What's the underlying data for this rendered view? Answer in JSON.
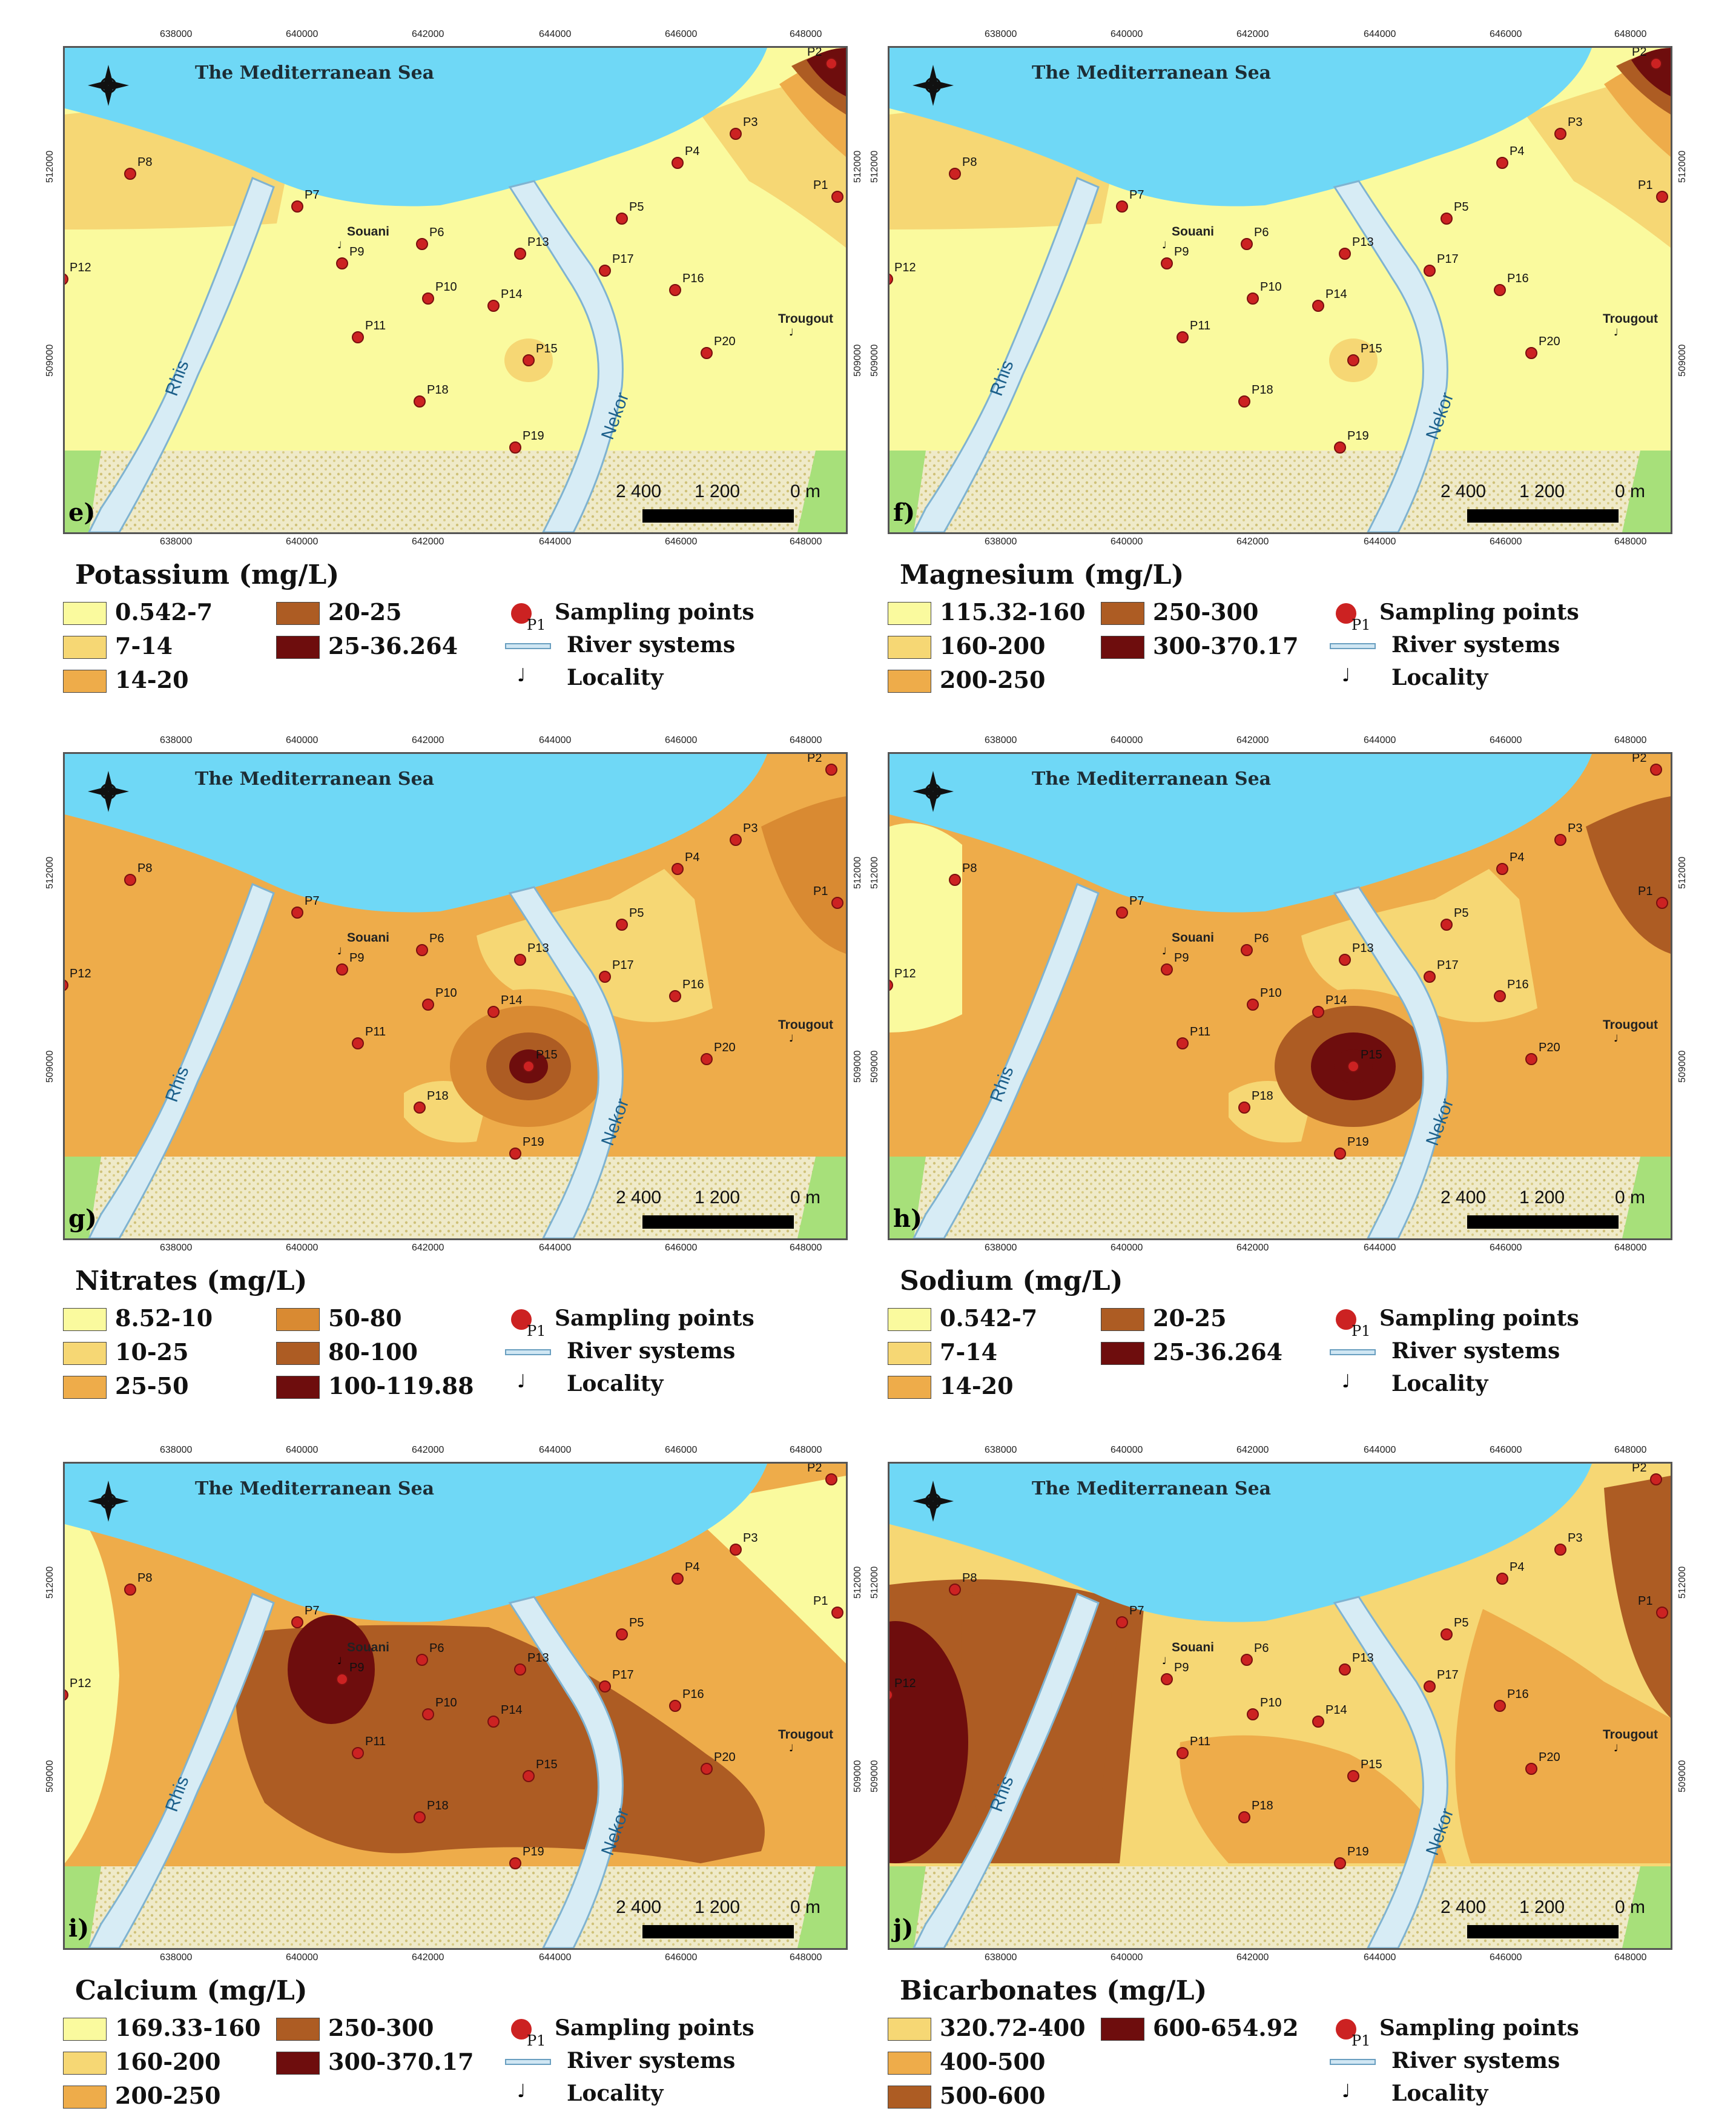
{
  "x_ticks": [
    "638000",
    "640000",
    "642000",
    "644000",
    "646000",
    "648000"
  ],
  "y_ticks": [
    "512000",
    "509000"
  ],
  "sea_label": "The Mediterranean Sea",
  "localities": {
    "souani": "Souani",
    "trougout": "Trougout"
  },
  "rivers": {
    "rhis": "Rhis",
    "nekor": "Nekor"
  },
  "scale": {
    "left": "2 400",
    "mid": "1 200",
    "right": "0 m"
  },
  "legend_symbols": {
    "sampling_points": "Sampling points",
    "sampling_points_sub": "P1",
    "river_systems": "River systems",
    "locality": "Locality"
  },
  "colors": {
    "sea": "#6fd8f6",
    "river": "#d7ecf5",
    "plain": "#efeac9",
    "hill": "#a7e07a",
    "c1": "#fafa9e",
    "c2": "#f6d774",
    "c3": "#eeac4a",
    "c4": "#ad5c23",
    "c5": "#6e0d0d"
  },
  "panels": [
    {
      "letter": "e)",
      "title": "Potassium (mg/L)",
      "classes": [
        {
          "label": "0.542-7",
          "color": "#fafa9e"
        },
        {
          "label": "7-14",
          "color": "#f6d774"
        },
        {
          "label": "14-20",
          "color": "#eeac4a"
        },
        {
          "label": "20-25",
          "color": "#ad5c23"
        },
        {
          "label": "25-36.264",
          "color": "#6e0d0d"
        }
      ]
    },
    {
      "letter": "f)",
      "title": "Magnesium (mg/L)",
      "classes": [
        {
          "label": "115.32-160",
          "color": "#fafa9e"
        },
        {
          "label": "160-200",
          "color": "#f6d774"
        },
        {
          "label": "200-250",
          "color": "#eeac4a"
        },
        {
          "label": "250-300",
          "color": "#ad5c23"
        },
        {
          "label": "300-370.17",
          "color": "#6e0d0d"
        }
      ]
    },
    {
      "letter": "g)",
      "title": "Nitrates (mg/L)",
      "classes": [
        {
          "label": "8.52-10",
          "color": "#fafa9e"
        },
        {
          "label": "10-25",
          "color": "#f6d774"
        },
        {
          "label": "25-50",
          "color": "#eeac4a"
        },
        {
          "label": "50-80",
          "color": "#d98a32"
        },
        {
          "label": "80-100",
          "color": "#ad5c23"
        },
        {
          "label": "100-119.88",
          "color": "#6e0d0d"
        }
      ]
    },
    {
      "letter": "h)",
      "title": "Sodium (mg/L)",
      "classes": [
        {
          "label": "0.542-7",
          "color": "#fafa9e"
        },
        {
          "label": "7-14",
          "color": "#f6d774"
        },
        {
          "label": "14-20",
          "color": "#eeac4a"
        },
        {
          "label": "20-25",
          "color": "#ad5c23"
        },
        {
          "label": "25-36.264",
          "color": "#6e0d0d"
        }
      ]
    },
    {
      "letter": "i)",
      "title": "Calcium (mg/L)",
      "classes": [
        {
          "label": "169.33-160",
          "color": "#fafa9e"
        },
        {
          "label": "160-200",
          "color": "#f6d774"
        },
        {
          "label": "200-250",
          "color": "#eeac4a"
        },
        {
          "label": "250-300",
          "color": "#ad5c23"
        },
        {
          "label": "300-370.17",
          "color": "#6e0d0d"
        }
      ]
    },
    {
      "letter": "j)",
      "title": "Bicarbonates (mg/L)",
      "classes": [
        {
          "label": "320.72-400",
          "color": "#f6d774"
        },
        {
          "label": "400-500",
          "color": "#eeac4a"
        },
        {
          "label": "500-600",
          "color": "#ad5c23"
        },
        {
          "label": "600-654.92",
          "color": "#6e0d0d"
        }
      ]
    }
  ],
  "sampling_points": [
    {
      "id": "P1"
    },
    {
      "id": "P2"
    },
    {
      "id": "P3"
    },
    {
      "id": "P4"
    },
    {
      "id": "P5"
    },
    {
      "id": "P6"
    },
    {
      "id": "P7"
    },
    {
      "id": "P8"
    },
    {
      "id": "P9"
    },
    {
      "id": "P10"
    },
    {
      "id": "P11"
    },
    {
      "id": "P12"
    },
    {
      "id": "P13"
    },
    {
      "id": "P14"
    },
    {
      "id": "P15"
    },
    {
      "id": "P16"
    },
    {
      "id": "P17"
    },
    {
      "id": "P18"
    },
    {
      "id": "P19"
    },
    {
      "id": "P20"
    }
  ]
}
